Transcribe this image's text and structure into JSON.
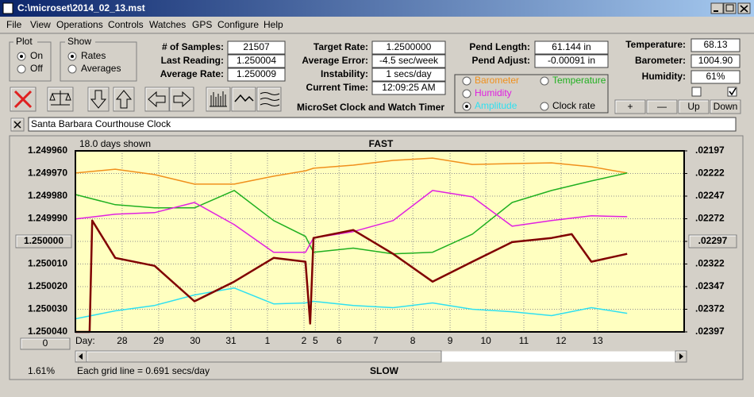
{
  "window": {
    "title": "C:\\microset\\2014_02_13.mst"
  },
  "menu": [
    "File",
    "View",
    "Operations",
    "Controls",
    "Watches",
    "GPS",
    "Configure",
    "Help"
  ],
  "plot_group": {
    "title": "Plot",
    "options": [
      "On",
      "Off"
    ]
  },
  "show_group": {
    "title": "Show",
    "options": [
      "Rates",
      "Averages"
    ]
  },
  "fields": [
    {
      "label": "# of Samples:",
      "value": 21507
    },
    {
      "label": "Last Reading:",
      "value": 1.250004
    },
    {
      "label": "Average Rate:",
      "value": 1.250009
    },
    {
      "label": "Target Rate:",
      "value": "1.2500000"
    },
    {
      "label": "Average Error:",
      "value": "-4.5 sec/week"
    },
    {
      "label": "Instability:",
      "value": "1 secs/day"
    },
    {
      "label": "Current Time:",
      "value": "12:09:25 AM"
    },
    {
      "label": "Pend Length:",
      "value": "61.144 in"
    },
    {
      "label": "Pend Adjust:",
      "value": "-0.00091 in"
    },
    {
      "label": "Temperature:",
      "value": 68.13
    },
    {
      "label": "Barometer:",
      "value": "1004.90"
    },
    {
      "label": "Humidity:",
      "value": "61%"
    }
  ],
  "buttons": [
    "+",
    "—",
    "Up",
    "Down"
  ],
  "app_name": "MicroSet Clock and Watch Timer",
  "clock_name": "Santa Barbara Courthouse Clock",
  "chart_data": {
    "type": "line",
    "span_label": "18.0 days shown",
    "top_label": "FAST",
    "bottom_label": "SLOW",
    "x_label": "Day:",
    "offset_button": "0",
    "scroll_position": "1.61%",
    "grid_note": "Each grid line = 0.691 secs/day",
    "grid": true,
    "xlim": [
      0,
      16.67
    ],
    "xticks": [
      {
        "value": 1.28,
        "label": "28"
      },
      {
        "value": 2.28,
        "label": "29"
      },
      {
        "value": 3.28,
        "label": "30"
      },
      {
        "value": 4.26,
        "label": "31"
      },
      {
        "value": 5.26,
        "label": "1"
      },
      {
        "value": 6.26,
        "label": "2"
      },
      {
        "value": 6.57,
        "label": "5"
      },
      {
        "value": 7.22,
        "label": "6"
      },
      {
        "value": 8.22,
        "label": "7"
      },
      {
        "value": 9.24,
        "label": "8"
      },
      {
        "value": 10.26,
        "label": "9"
      },
      {
        "value": 11.24,
        "label": "10"
      },
      {
        "value": 12.28,
        "label": "11"
      },
      {
        "value": 13.3,
        "label": "12"
      },
      {
        "value": 14.3,
        "label": "13"
      }
    ],
    "ylim": [
      1.25004,
      1.24996
    ],
    "yticks": [
      {
        "value": 1.24996,
        "label": "1.249960"
      },
      {
        "value": 1.24997,
        "label": "1.249970"
      },
      {
        "value": 1.24998,
        "label": "1.249980"
      },
      {
        "value": 1.24999,
        "label": "1.249990"
      },
      {
        "value": 1.25,
        "label": "1.250000"
      },
      {
        "value": 1.25001,
        "label": "1.250010"
      },
      {
        "value": 1.25002,
        "label": "1.250020"
      },
      {
        "value": 1.25003,
        "label": "1.250030"
      },
      {
        "value": 1.25004,
        "label": "1.250040"
      }
    ],
    "y2lim": [
      0.02397,
      0.02197
    ],
    "y2ticks": [
      {
        "value": 0.02197,
        "label": ".02197"
      },
      {
        "value": 0.02222,
        "label": ".02222"
      },
      {
        "value": 0.02247,
        "label": ".02247"
      },
      {
        "value": 0.02272,
        "label": ".02272"
      },
      {
        "value": 0.02297,
        "label": ".02297"
      },
      {
        "value": 0.02322,
        "label": ".02322"
      },
      {
        "value": 0.02347,
        "label": ".02347"
      },
      {
        "value": 0.02372,
        "label": ".02372"
      },
      {
        "value": 0.02397,
        "label": ".02397"
      }
    ],
    "series": [
      {
        "name": "Barometer",
        "color": "#f0901c",
        "x": [
          0,
          1.09,
          2.17,
          3.26,
          4.35,
          5.43,
          6.3,
          6.52,
          7.61,
          8.7,
          9.78,
          10.87,
          11.96,
          13.04,
          14.13,
          15.11
        ],
        "values": [
          1.2499698,
          1.2499681,
          1.2499705,
          1.2499747,
          1.2499747,
          1.2499712,
          1.2499688,
          1.2499677,
          1.2499663,
          1.2499642,
          1.2499632,
          1.249966,
          1.2499656,
          1.2499653,
          1.249967,
          1.2499698
        ]
      },
      {
        "name": "Temperature",
        "color": "#20b020",
        "x": [
          0,
          1.09,
          2.17,
          3.26,
          4.35,
          5.43,
          6.3,
          6.52,
          7.61,
          8.7,
          9.78,
          10.87,
          11.96,
          13.04,
          14.13,
          15.11
        ],
        "values": [
          1.2499793,
          1.2499838,
          1.2499852,
          1.2499852,
          1.2499775,
          1.2499908,
          1.2499978,
          1.2500048,
          1.250003,
          1.2500055,
          1.2500048,
          1.2499968,
          1.2499828,
          1.2499775,
          1.2499733,
          1.2499698
        ]
      },
      {
        "name": "Humidity",
        "color": "#e020e0",
        "x": [
          0,
          1.09,
          2.17,
          3.26,
          4.35,
          5.43,
          6.3,
          6.52,
          7.61,
          8.7,
          9.78,
          10.87,
          11.96,
          13.04,
          14.13,
          15.11
        ],
        "values": [
          1.2499901,
          1.249988,
          1.2499873,
          1.2499828,
          1.2499926,
          1.2500048,
          1.2500048,
          1.2499985,
          1.2499957,
          1.2499908,
          1.2499775,
          1.2499803,
          1.2499933,
          1.2499908,
          1.2499887,
          1.2499891
        ]
      },
      {
        "name": "Amplitude",
        "color": "#30e0f0",
        "x": [
          0,
          1.09,
          2.17,
          3.26,
          4.35,
          5.43,
          6.3,
          6.52,
          7.61,
          8.7,
          9.78,
          10.87,
          11.96,
          13.04,
          14.13,
          15.11
        ],
        "values": [
          1.2500342,
          1.2500307,
          1.2500283,
          1.2500237,
          1.2500206,
          1.2500276,
          1.2500272,
          1.2500265,
          1.2500283,
          1.2500293,
          1.2500272,
          1.25003,
          1.2500311,
          1.2500328,
          1.2500293,
          1.2500318
        ]
      },
      {
        "name": "Clock rate",
        "color": "#800000",
        "x": [
          0,
          0.39,
          0.46,
          1.09,
          2.17,
          3.26,
          4.35,
          5.43,
          6.3,
          6.43,
          6.52,
          7.61,
          8.7,
          9.78,
          10.87,
          11.96,
          13.04,
          13.59,
          14.13,
          15.11
        ],
        "values": [
          1.25004,
          1.25004,
          1.2499908,
          1.2500073,
          1.2500108,
          1.2500265,
          1.2500178,
          1.2500073,
          1.250009,
          1.2500363,
          1.2499985,
          1.249995,
          1.2500055,
          1.2500178,
          1.250009,
          1.2500003,
          1.2499985,
          1.2499968,
          1.250009,
          1.2500055
        ]
      }
    ]
  }
}
